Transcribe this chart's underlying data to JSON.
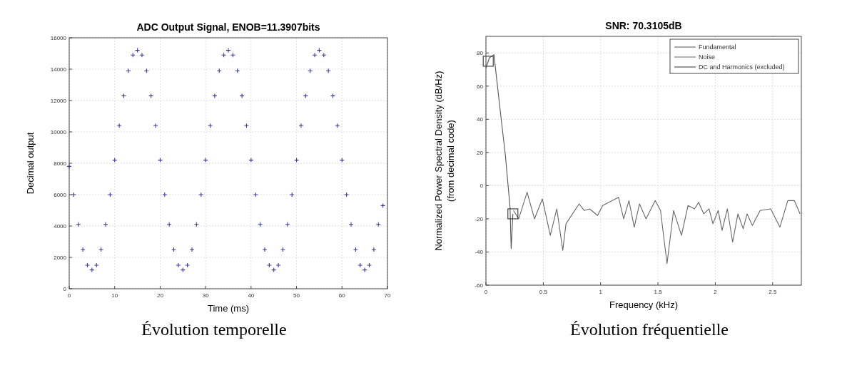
{
  "chart_data": [
    {
      "type": "scatter",
      "title": "ADC Output Signal, ENOB=11.3907bits",
      "xlabel": "Time (ms)",
      "ylabel": "Decimal output",
      "marker": "cross",
      "grid": true,
      "xlim": [
        0,
        70
      ],
      "ylim": [
        0,
        16000
      ],
      "xticks": [
        0,
        10,
        20,
        30,
        40,
        50,
        60,
        70
      ],
      "yticks": [
        0,
        2000,
        4000,
        6000,
        8000,
        10000,
        12000,
        14000,
        16000
      ],
      "x": [
        0,
        1,
        2,
        3,
        4,
        5,
        6,
        7,
        8,
        9,
        10,
        11,
        12,
        13,
        14,
        15,
        16,
        17,
        18,
        19,
        20,
        21,
        22,
        23,
        24,
        25,
        26,
        27,
        28,
        29,
        30,
        31,
        32,
        33,
        34,
        35,
        36,
        37,
        38,
        39,
        40,
        41,
        42,
        43,
        44,
        45,
        46,
        47,
        48,
        49,
        50,
        51,
        52,
        53,
        54,
        55,
        56,
        57,
        58,
        59,
        60,
        61,
        62,
        63,
        64,
        65,
        66,
        67,
        68,
        69
      ],
      "series": [
        {
          "color": "#3b3b9c",
          "values": [
            7800,
            6000,
            4100,
            2500,
            1500,
            1200,
            1500,
            2500,
            4100,
            6000,
            8200,
            10400,
            12300,
            13900,
            14900,
            15200,
            14900,
            13900,
            12300,
            10400,
            8200,
            6000,
            4100,
            2500,
            1500,
            1200,
            1500,
            2500,
            4100,
            6000,
            8200,
            10400,
            12300,
            13900,
            14900,
            15200,
            14900,
            13900,
            12300,
            10400,
            8200,
            6000,
            4100,
            2500,
            1500,
            1200,
            1500,
            2500,
            4100,
            6000,
            8200,
            10400,
            12300,
            13900,
            14900,
            15200,
            14900,
            13900,
            12300,
            10400,
            8200,
            6000,
            4100,
            2500,
            1500,
            1200,
            1500,
            2500,
            4100,
            5300
          ]
        }
      ],
      "annotations": [
        "Évolution temporelle"
      ]
    },
    {
      "type": "line",
      "title": "SNR: 70.3105dB",
      "xlabel": "Frequency (kHz)",
      "ylabel": "Normalized Power Spectral Density (dB/Hz)\n(from decimal code)",
      "grid": true,
      "legend": "top right",
      "line_style": "solid",
      "xlim": [
        0,
        2.75
      ],
      "ylim": [
        -60,
        90
      ],
      "xticks": [
        0,
        0.5,
        1,
        1.5,
        2,
        2.5
      ],
      "yticks": [
        -60,
        -40,
        -20,
        0,
        20,
        40,
        60,
        80
      ],
      "series": [
        {
          "name": "Fundamental",
          "color": "#555555",
          "x": [
            0,
            0.03,
            0.07,
            0.12,
            0.17,
            0.21,
            0.22,
            0.235
          ],
          "values": [
            71,
            77,
            79,
            48,
            18,
            -13,
            -38,
            -17
          ]
        },
        {
          "name": "Noise",
          "color": "#666666",
          "x": [
            0.24,
            0.286,
            0.359,
            0.423,
            0.492,
            0.561,
            0.618,
            0.67,
            0.698,
            0.812,
            0.858,
            0.904,
            0.973,
            1.018,
            1.156,
            1.201,
            1.247,
            1.293,
            1.339,
            1.396,
            1.476,
            1.522,
            1.579,
            1.636,
            1.705,
            1.762,
            1.819,
            1.854,
            1.899,
            1.945,
            1.979,
            2.025,
            2.059,
            2.105,
            2.151,
            2.197,
            2.243,
            2.277,
            2.323,
            2.391,
            2.483,
            2.563,
            2.632,
            2.689,
            2.739
          ],
          "values": [
            -15,
            -20,
            -4,
            -20,
            -8,
            -30,
            -14,
            -39,
            -23,
            -11,
            -15,
            -14,
            -18,
            -12,
            -7,
            -20,
            -9,
            -25,
            -11,
            -20,
            -9,
            -15,
            -47,
            -15,
            -30,
            -12,
            -14,
            -10,
            -17,
            -14,
            -23,
            -15,
            -27,
            -14,
            -34,
            -17,
            -26,
            -17,
            -24,
            -15,
            -14,
            -25,
            -9,
            -9,
            -17
          ]
        },
        {
          "name": "DC and Harmonics (excluded)",
          "type": "scatter",
          "marker": "square",
          "color": "#333333",
          "x": [
            0.02,
            0.235
          ],
          "values": [
            75,
            -17
          ]
        }
      ],
      "annotations": [
        "Évolution fréquentielle"
      ]
    }
  ]
}
